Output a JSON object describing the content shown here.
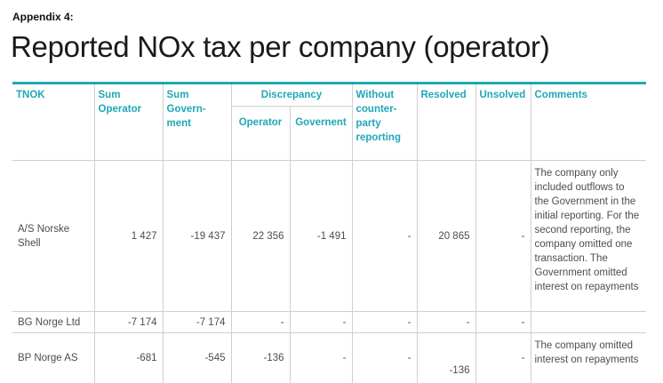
{
  "appendix": "Appendix 4:",
  "title": "Reported NOx tax per company (operator)",
  "accent_color": "#1fa8b5",
  "headers": {
    "tnok": "TNOK",
    "sum_operator": "Sum Operator",
    "sum_government": "Sum Govern-ment",
    "discrepancy": "Discrepancy",
    "operator": "Operator",
    "government": "Governent",
    "without": "Without counter-party reporting",
    "resolved": "Resolved",
    "unsolved": "Unsolved",
    "comments": "Comments"
  },
  "rows": [
    {
      "company": "A/S Norske Shell",
      "sum_operator": "1 427",
      "sum_government": "-19 437",
      "disc_operator": "22 356",
      "disc_government": "-1 491",
      "without": "-",
      "resolved": "20 865",
      "unsolved": "-",
      "comment": "The company only included outflows to the Government in the initial reporting. For the second reporting, the company omitted one transaction. The Government omitted interest on repayments"
    },
    {
      "company": "BG Norge Ltd",
      "sum_operator": "-7 174",
      "sum_government": "-7 174",
      "disc_operator": "-",
      "disc_government": "-",
      "without": "-",
      "resolved": "-",
      "unsolved": "-",
      "comment": ""
    },
    {
      "company": "BP Norge AS",
      "sum_operator": "-681",
      "sum_government": "-545",
      "disc_operator": "-136",
      "disc_government": "-",
      "without": "-",
      "resolved": "-136",
      "unsolved": "-",
      "comment": "The company omitted interest on repayments"
    }
  ]
}
